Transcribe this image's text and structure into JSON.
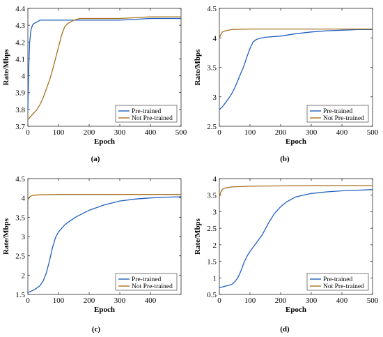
{
  "chart_data": [
    {
      "type": "line",
      "panel_label": "(a)",
      "xlabel": "Epoch",
      "ylabel": "Rate/Mbps",
      "xlim": [
        0,
        500
      ],
      "ylim": [
        3.7,
        4.4
      ],
      "xticks": [
        "0",
        "100",
        "200",
        "300",
        "400",
        "500"
      ],
      "yticks": [
        "3.7",
        "3.8",
        "3.9",
        "4",
        "4.1",
        "4.2",
        "4.3",
        "4.4"
      ],
      "legend_position": "bottom-right",
      "series": [
        {
          "name": "Pre-trained",
          "color": "#1f5fbf",
          "x": [
            0,
            3,
            6,
            10,
            15,
            20,
            30,
            40,
            60,
            100,
            200,
            300,
            400,
            500
          ],
          "y": [
            3.8,
            4.05,
            4.2,
            4.27,
            4.3,
            4.31,
            4.32,
            4.33,
            4.33,
            4.33,
            4.33,
            4.33,
            4.34,
            4.34
          ]
        },
        {
          "name": "Not Pre-trained",
          "color": "#a87020",
          "x": [
            0,
            10,
            20,
            30,
            40,
            50,
            60,
            70,
            80,
            90,
            100,
            110,
            120,
            130,
            140,
            150,
            170,
            200,
            250,
            300,
            400,
            500
          ],
          "y": [
            3.74,
            3.76,
            3.78,
            3.8,
            3.83,
            3.87,
            3.92,
            3.97,
            4.03,
            4.1,
            4.17,
            4.24,
            4.29,
            4.31,
            4.32,
            4.33,
            4.34,
            4.34,
            4.34,
            4.34,
            4.35,
            4.35
          ]
        }
      ]
    },
    {
      "type": "line",
      "panel_label": "(b)",
      "xlabel": "Epoch",
      "ylabel": "Rate/Mbps",
      "xlim": [
        0,
        500
      ],
      "ylim": [
        2.5,
        4.5
      ],
      "xticks": [
        "0",
        "100",
        "200",
        "300",
        "400",
        "500"
      ],
      "yticks": [
        "2.5",
        "3",
        "3.5",
        "4",
        "4.5"
      ],
      "legend_position": "bottom-right",
      "series": [
        {
          "name": "Pre-trained",
          "color": "#1f5fbf",
          "x": [
            0,
            10,
            20,
            30,
            40,
            50,
            60,
            70,
            80,
            90,
            100,
            110,
            120,
            130,
            150,
            200,
            250,
            300,
            350,
            400,
            450,
            500
          ],
          "y": [
            2.78,
            2.83,
            2.9,
            2.97,
            3.05,
            3.15,
            3.27,
            3.4,
            3.52,
            3.68,
            3.82,
            3.93,
            3.97,
            3.99,
            4.01,
            4.03,
            4.07,
            4.1,
            4.12,
            4.13,
            4.14,
            4.14
          ]
        },
        {
          "name": "Not Pre-trained",
          "color": "#a87020",
          "x": [
            0,
            5,
            10,
            20,
            40,
            100,
            200,
            300,
            400,
            500
          ],
          "y": [
            4.0,
            4.06,
            4.1,
            4.12,
            4.14,
            4.15,
            4.15,
            4.15,
            4.15,
            4.15
          ]
        }
      ]
    },
    {
      "type": "line",
      "panel_label": "(c)",
      "xlabel": "Epoch",
      "ylabel": "Rate/Mbps",
      "xlim": [
        0,
        500
      ],
      "ylim": [
        1.5,
        4.5
      ],
      "xticks": [
        "0",
        "100",
        "200",
        "300",
        "400"
      ],
      "yticks": [
        "1.5",
        "2",
        "2.5",
        "3",
        "3.5",
        "4",
        "4.5"
      ],
      "legend_position": "bottom-right",
      "series": [
        {
          "name": "Pre-trained",
          "color": "#1f5fbf",
          "x": [
            0,
            10,
            20,
            30,
            40,
            50,
            60,
            70,
            80,
            90,
            100,
            120,
            140,
            160,
            180,
            200,
            250,
            300,
            350,
            400,
            450,
            500
          ],
          "y": [
            1.55,
            1.58,
            1.62,
            1.67,
            1.73,
            1.85,
            2.05,
            2.35,
            2.7,
            2.97,
            3.12,
            3.3,
            3.42,
            3.52,
            3.6,
            3.68,
            3.82,
            3.92,
            3.97,
            4.0,
            4.02,
            4.03
          ]
        },
        {
          "name": "Not Pre-trained",
          "color": "#a87020",
          "x": [
            0,
            5,
            10,
            20,
            40,
            100,
            200,
            300,
            400,
            500
          ],
          "y": [
            3.95,
            4.02,
            4.05,
            4.07,
            4.08,
            4.09,
            4.09,
            4.09,
            4.09,
            4.09
          ]
        }
      ]
    },
    {
      "type": "line",
      "panel_label": "(d)",
      "xlabel": "Epoch",
      "ylabel": "Rate/Mbps",
      "xlim": [
        0,
        500
      ],
      "ylim": [
        0.5,
        4
      ],
      "xticks": [
        "0",
        "100",
        "200",
        "300",
        "400",
        "500"
      ],
      "yticks": [
        "0.5",
        "1",
        "1.5",
        "2",
        "2.5",
        "3",
        "3.5",
        "4"
      ],
      "legend_position": "bottom-right",
      "series": [
        {
          "name": "Pre-trained",
          "color": "#1f5fbf",
          "x": [
            0,
            20,
            40,
            50,
            60,
            70,
            80,
            90,
            100,
            120,
            140,
            160,
            180,
            200,
            220,
            250,
            300,
            350,
            400,
            450,
            500
          ],
          "y": [
            0.7,
            0.75,
            0.8,
            0.88,
            1.0,
            1.2,
            1.45,
            1.65,
            1.8,
            2.05,
            2.3,
            2.65,
            2.95,
            3.15,
            3.3,
            3.45,
            3.55,
            3.6,
            3.63,
            3.65,
            3.67
          ]
        },
        {
          "name": "Not Pre-trained",
          "color": "#a87020",
          "x": [
            0,
            5,
            10,
            20,
            40,
            100,
            200,
            300,
            400,
            500
          ],
          "y": [
            3.45,
            3.6,
            3.68,
            3.72,
            3.75,
            3.77,
            3.78,
            3.79,
            3.79,
            3.79
          ]
        }
      ]
    }
  ]
}
